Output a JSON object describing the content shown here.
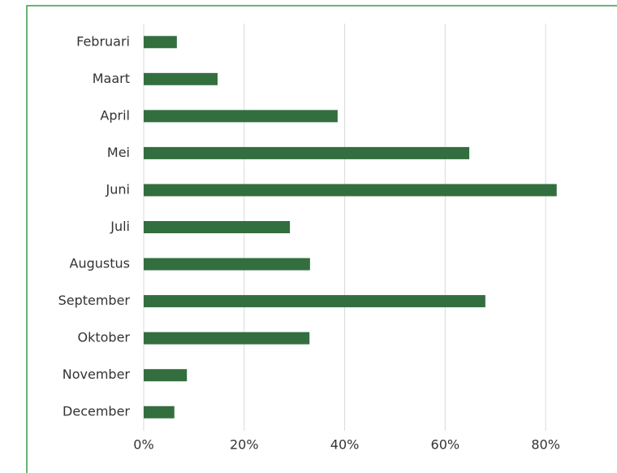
{
  "chart_data": {
    "type": "bar",
    "orientation": "horizontal",
    "categories": [
      "Februari",
      "Maart",
      "April",
      "Mei",
      "Juni",
      "Juli",
      "Augustus",
      "September",
      "Oktober",
      "November",
      "December"
    ],
    "values": [
      6.6,
      14.7,
      38.6,
      64.8,
      82.2,
      29.1,
      33.1,
      68.0,
      33.0,
      8.6,
      6.1
    ],
    "color": "#336e3f",
    "xlim": [
      0,
      90
    ],
    "xticks": [
      {
        "value": 0,
        "label": "0%"
      },
      {
        "value": 20,
        "label": "20%"
      },
      {
        "value": 40,
        "label": "40%"
      },
      {
        "value": 60,
        "label": "60%"
      },
      {
        "value": 80,
        "label": "80%"
      }
    ],
    "grid": true
  }
}
